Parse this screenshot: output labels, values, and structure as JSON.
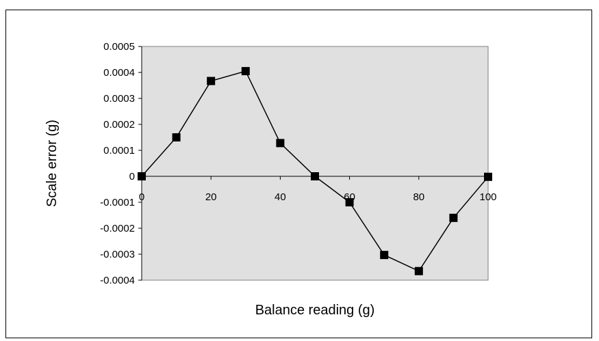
{
  "chart_data": {
    "type": "line",
    "title": "",
    "xlabel": "Balance reading (g)",
    "ylabel": "Scale error (g)",
    "xlim": [
      0,
      100
    ],
    "ylim": [
      -0.0004,
      0.0005
    ],
    "x_ticks": [
      "0",
      "20",
      "40",
      "60",
      "80",
      "100"
    ],
    "y_ticks": [
      "0.0005",
      "0.0004",
      "0.0003",
      "0.0002",
      "0.0001",
      "0",
      "-0.0001",
      "-0.0002",
      "-0.0003",
      "-0.0004"
    ],
    "x_tick_values": [
      0,
      20,
      40,
      60,
      80,
      100
    ],
    "y_tick_values": [
      0.0005,
      0.0004,
      0.0003,
      0.0002,
      0.0001,
      0,
      -0.0001,
      -0.0002,
      -0.0003,
      -0.0004
    ],
    "grid": false,
    "plot_background": "#e0e0e0",
    "series": [
      {
        "marker": "square",
        "color": "#000000",
        "x": [
          0,
          10,
          20,
          30,
          40,
          50,
          60,
          70,
          80,
          90,
          100
        ],
        "y": [
          0.0,
          0.00015,
          0.000367,
          0.000405,
          0.000128,
          0.0,
          -0.0001,
          -0.000303,
          -0.000365,
          -0.00016,
          -2e-06
        ]
      }
    ]
  }
}
